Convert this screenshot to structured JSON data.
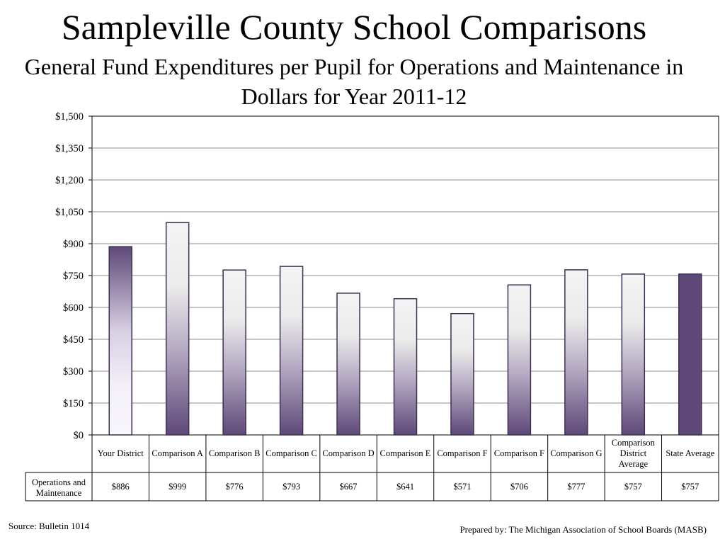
{
  "chart_data": {
    "type": "bar",
    "title": "Sampleville County School Comparisons",
    "subtitle": "General Fund Expenditures per Pupil for Operations and Maintenance in Dollars for Year 2011-12",
    "categories": [
      "Your District",
      "Comparison A",
      "Comparison B",
      "Comparison C",
      "Comparison D",
      "Comparison E",
      "Comparison F",
      "Comparison F",
      "Comparison G",
      "Comparison District Average",
      "State Average"
    ],
    "series": [
      {
        "name": "Operations and Maintenance",
        "values": [
          886,
          999,
          776,
          793,
          667,
          641,
          571,
          706,
          777,
          757,
          757
        ],
        "labels": [
          "$886",
          "$999",
          "$776",
          "$793",
          "$667",
          "$641",
          "$571",
          "$706",
          "$777",
          "$757",
          "$757"
        ]
      }
    ],
    "ylim": [
      0,
      1500
    ],
    "yticks": [
      0,
      150,
      300,
      450,
      600,
      750,
      900,
      1050,
      1200,
      1350,
      1500
    ],
    "ytick_labels": [
      "$0",
      "$150",
      "$300",
      "$450",
      "$600",
      "$750",
      "$900",
      "$1,050",
      "$1,200",
      "$1,350",
      "$1,500"
    ],
    "grid": true,
    "legend": "none",
    "data_table": true
  },
  "colors": {
    "bar_dark": "#5e4878",
    "bar_light": "#f4f4f4",
    "bar_your_light": "#f8f5fd",
    "gridline": "#8c8c8c"
  },
  "footer": {
    "source": "Source: Bulletin 1014",
    "prepared_by": "Prepared by: The Michigan Association of School Boards (MASB)"
  }
}
